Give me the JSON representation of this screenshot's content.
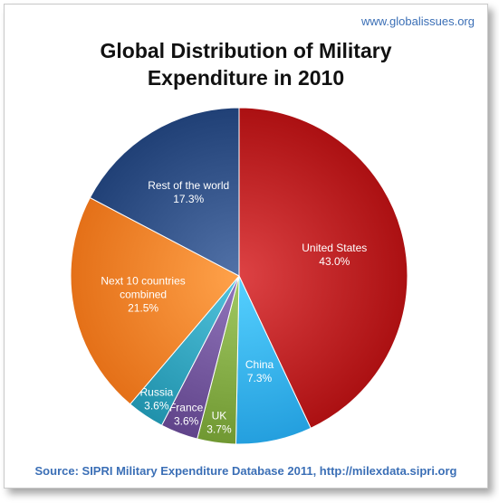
{
  "header": {
    "site": "www.globalissues.org"
  },
  "footer": {
    "source": "Source: SIPRI Military Expenditure Database 2011, http://milexdata.sipri.org"
  },
  "chart_data": {
    "type": "pie",
    "title_line1": "Global Distribution of Military",
    "title_line2": "Expenditure in 2010",
    "slices": [
      {
        "label": [
          "United States"
        ],
        "value": 43.0,
        "value_label": "43.0%",
        "color": "#b51a1c"
      },
      {
        "label": [
          "China"
        ],
        "value": 7.3,
        "value_label": "7.3%",
        "color": "#2ea9e8"
      },
      {
        "label": [
          "UK"
        ],
        "value": 3.7,
        "value_label": "3.7%",
        "color": "#7aa23c"
      },
      {
        "label": [
          "France"
        ],
        "value": 3.6,
        "value_label": "3.6%",
        "color": "#6a4e94"
      },
      {
        "label": [
          "Russia"
        ],
        "value": 3.6,
        "value_label": "3.6%",
        "color": "#2a9bb5"
      },
      {
        "label": [
          "Next 10 countries",
          "combined"
        ],
        "value": 21.5,
        "value_label": "21.5%",
        "color": "#ee7a22"
      },
      {
        "label": [
          "Rest of the world"
        ],
        "value": 17.3,
        "value_label": "17.3%",
        "color": "#2a4a80"
      }
    ],
    "start_angle_deg": 0,
    "direction": "clockwise"
  }
}
